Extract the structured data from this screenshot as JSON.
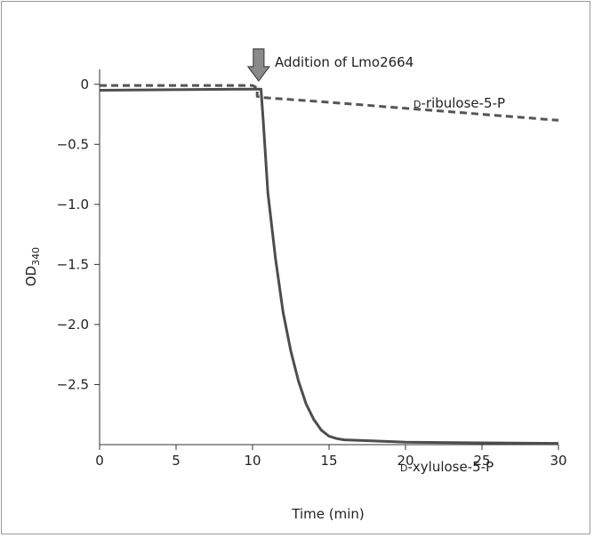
{
  "chart_data": {
    "type": "line",
    "xlabel": "Time (min)",
    "ylabel": "OD",
    "ylabel_sub": "340",
    "xlim": [
      0,
      30
    ],
    "ylim": [
      -3.0,
      0.05
    ],
    "xticks": [
      0,
      5,
      10,
      15,
      20,
      25,
      30
    ],
    "yticks": [
      0,
      -0.5,
      -1.0,
      -1.5,
      -2.0,
      -2.5
    ],
    "ytick_labels": [
      "0",
      "−0.5",
      "−1.0",
      "−1.5",
      "−2.0",
      "−2.5"
    ],
    "grid": false,
    "annotation": {
      "text": "Addition of Lmo2664",
      "x": 10.4
    },
    "series": [
      {
        "name": "D-ribulose-5-P",
        "label_prefix": "D",
        "label_rest": "-ribulose-5-P",
        "style": "dashed",
        "color": "#555555",
        "x": [
          0,
          10.0,
          10.3,
          10.3,
          10.6,
          15,
          20,
          25,
          30
        ],
        "y": [
          -0.01,
          -0.01,
          -0.03,
          -0.1,
          -0.11,
          -0.15,
          -0.2,
          -0.25,
          -0.3
        ]
      },
      {
        "name": "D-xylulose-5-P",
        "label_prefix": "D",
        "label_rest": "-xylulose-5-P",
        "style": "solid",
        "color": "#4d4d4d",
        "x": [
          0,
          10.0,
          10.55,
          10.7,
          11,
          11.5,
          12,
          12.5,
          13,
          13.5,
          14,
          14.5,
          15,
          15.5,
          16,
          18,
          20,
          25,
          30
        ],
        "y": [
          -0.05,
          -0.04,
          -0.04,
          -0.3,
          -0.9,
          -1.45,
          -1.9,
          -2.22,
          -2.47,
          -2.66,
          -2.79,
          -2.88,
          -2.93,
          -2.95,
          -2.96,
          -2.97,
          -2.98,
          -2.985,
          -2.99
        ]
      }
    ]
  }
}
